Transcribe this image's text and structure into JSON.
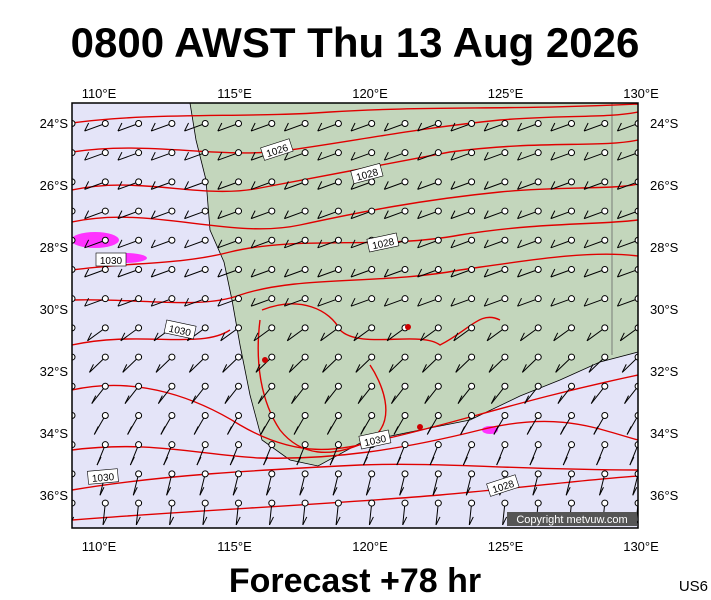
{
  "header": {
    "title": "0800 AWST Thu 13 Aug 2026"
  },
  "map": {
    "lon_ticks": [
      {
        "value": 110,
        "label": "110°E"
      },
      {
        "value": 115,
        "label": "115°E"
      },
      {
        "value": 120,
        "label": "120°E"
      },
      {
        "value": 125,
        "label": "125°E"
      },
      {
        "value": 130,
        "label": "130°E"
      }
    ],
    "lat_ticks": [
      {
        "value": -24,
        "label": "24°S"
      },
      {
        "value": -26,
        "label": "26°S"
      },
      {
        "value": -28,
        "label": "28°S"
      },
      {
        "value": -30,
        "label": "30°S"
      },
      {
        "value": -32,
        "label": "32°S"
      },
      {
        "value": -34,
        "label": "34°S"
      },
      {
        "value": -36,
        "label": "36°S"
      }
    ],
    "isobar_labels": [
      "1026",
      "1028",
      "1030",
      "1028",
      "1030",
      "1030",
      "1030",
      "1028"
    ],
    "copyright": "Copyright metvuw.com"
  },
  "footer": {
    "caption": "Forecast +78 hr",
    "code": "US6"
  }
}
